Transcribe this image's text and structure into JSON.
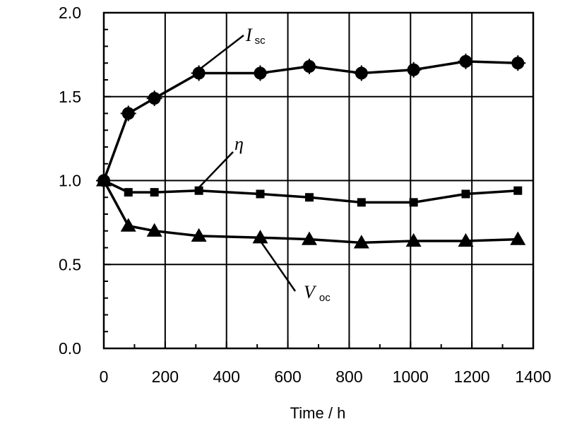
{
  "chart_data": {
    "type": "line",
    "title": "",
    "xlabel": "Time / h",
    "ylabel": "",
    "xlim": [
      0,
      1400
    ],
    "ylim": [
      0.0,
      2.0
    ],
    "xticks": [
      "0",
      "200",
      "400",
      "600",
      "800",
      "1000",
      "1200",
      "1400"
    ],
    "yticks": [
      "0.0",
      "0.5",
      "1.0",
      "1.5",
      "2.0"
    ],
    "grid": true,
    "series": [
      {
        "name": "I sc",
        "marker": "circle",
        "x": [
          0,
          80,
          165,
          310,
          510,
          670,
          840,
          1010,
          1180,
          1350
        ],
        "y": [
          1.0,
          1.4,
          1.49,
          1.64,
          1.64,
          1.68,
          1.64,
          1.66,
          1.71,
          1.7
        ]
      },
      {
        "name": "η",
        "marker": "square",
        "x": [
          0,
          80,
          165,
          310,
          510,
          670,
          840,
          1010,
          1180,
          1350
        ],
        "y": [
          1.0,
          0.93,
          0.93,
          0.94,
          0.92,
          0.9,
          0.87,
          0.87,
          0.92,
          0.94
        ]
      },
      {
        "name": "V oc",
        "marker": "triangle",
        "x": [
          0,
          80,
          165,
          310,
          510,
          670,
          840,
          1010,
          1180,
          1350
        ],
        "y": [
          1.0,
          0.73,
          0.7,
          0.67,
          0.66,
          0.65,
          0.63,
          0.64,
          0.64,
          0.65
        ]
      }
    ],
    "annotations": {
      "isc": {
        "main": "I",
        "sub": "sc"
      },
      "eta": {
        "main": "η"
      },
      "voc": {
        "main": "V",
        "sub": "oc"
      }
    }
  }
}
